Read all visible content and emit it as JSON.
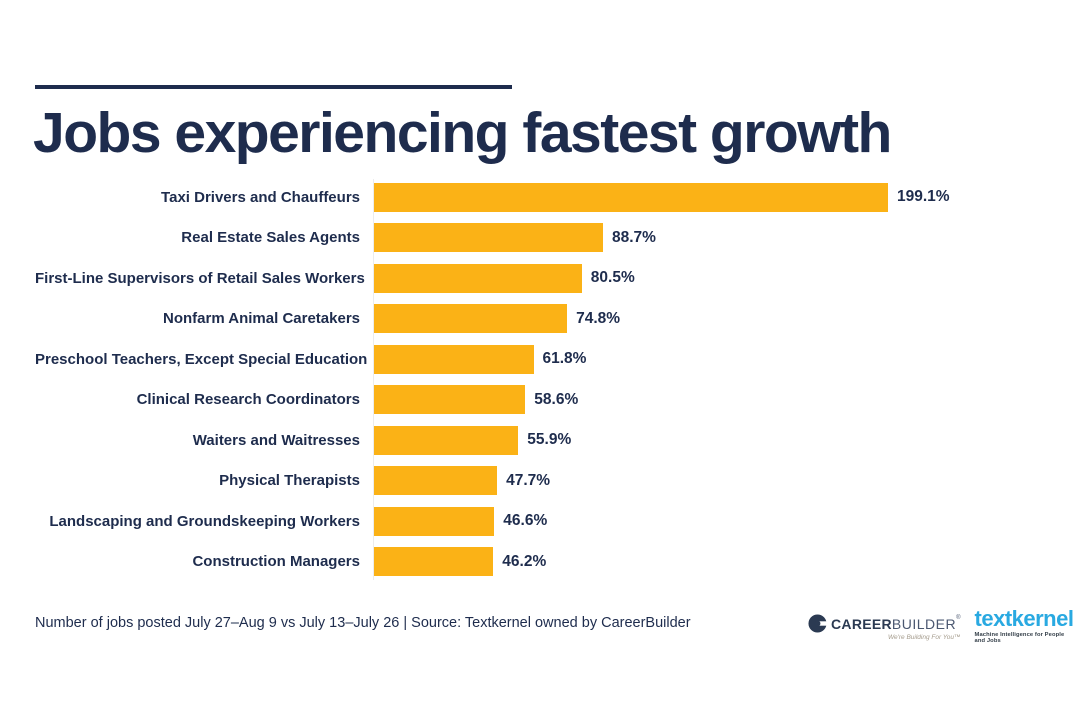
{
  "theme": {
    "navy": "#1E2C4D",
    "bar_yellow": "#FBB216",
    "textkernel_blue": "#29A9E1",
    "careerbuilder_tagline_gray": "#A49B8C"
  },
  "chart_data": {
    "type": "bar",
    "orientation": "horizontal",
    "title": "Jobs experiencing fastest growth",
    "categories": [
      "Taxi Drivers and Chauffeurs",
      "Real Estate Sales Agents",
      "First-Line Supervisors of Retail Sales Workers",
      "Nonfarm Animal Caretakers",
      "Preschool Teachers, Except Special Education",
      "Clinical Research Coordinators",
      "Waiters and Waitresses",
      "Physical Therapists",
      "Landscaping and Groundskeeping Workers",
      "Construction Managers"
    ],
    "values": [
      199.1,
      88.7,
      80.5,
      74.8,
      61.8,
      58.6,
      55.9,
      47.7,
      46.6,
      46.2
    ],
    "value_labels": [
      "199.1%",
      "88.7%",
      "80.5%",
      "74.8%",
      "61.8%",
      "58.6%",
      "55.9%",
      "47.7%",
      "46.6%",
      "46.2%"
    ],
    "bar_color": "#FBB216",
    "label_color": "#1E2C4D",
    "xlim": [
      0,
      210
    ],
    "grid": false,
    "value_label_position": "outside-end",
    "legend": "none"
  },
  "footer": {
    "note": "Number of jobs posted July 27–Aug 9 vs July 13–July 26  |  Source: Textkernel owned by CareerBuilder"
  },
  "logos": {
    "careerbuilder": {
      "icon": "careerbuilder-circle-icon",
      "name_bold": "CAREER",
      "name_light": "BUILDER",
      "registered_mark": "®",
      "tagline": "We're Building For You™"
    },
    "textkernel": {
      "name": "textkernel",
      "tagline": "Machine Intelligence for People and Jobs"
    }
  }
}
